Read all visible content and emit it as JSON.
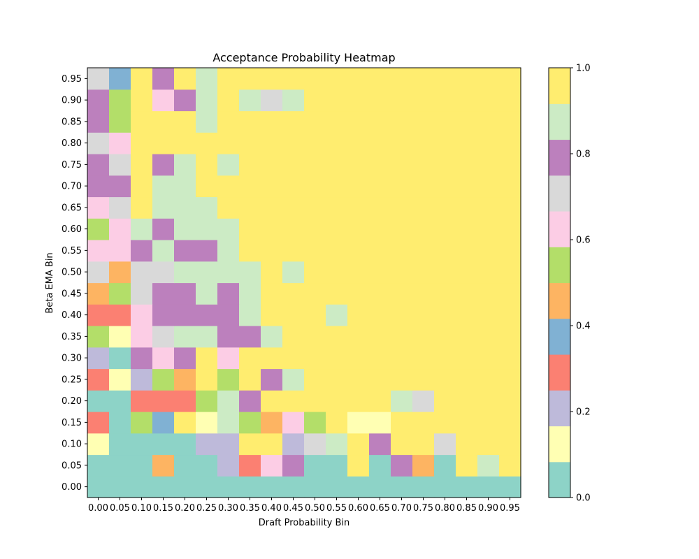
{
  "chart_data": {
    "type": "heatmap",
    "title": "Acceptance Probability Heatmap",
    "xlabel": "Draft Probability Bin",
    "ylabel": "Beta EMA Bin",
    "x_categories": [
      "0.00",
      "0.05",
      "0.10",
      "0.15",
      "0.20",
      "0.25",
      "0.30",
      "0.35",
      "0.40",
      "0.45",
      "0.50",
      "0.55",
      "0.60",
      "0.65",
      "0.70",
      "0.75",
      "0.80",
      "0.85",
      "0.90",
      "0.95"
    ],
    "y_categories": [
      "0.00",
      "0.05",
      "0.10",
      "0.15",
      "0.20",
      "0.25",
      "0.30",
      "0.35",
      "0.40",
      "0.45",
      "0.50",
      "0.55",
      "0.60",
      "0.65",
      "0.70",
      "0.75",
      "0.80",
      "0.85",
      "0.90",
      "0.95"
    ],
    "colorbar": {
      "range": [
        0.0,
        1.0
      ],
      "ticks": [
        "0.0",
        "0.2",
        "0.4",
        "0.6",
        "0.8",
        "1.0"
      ],
      "colormap": "Set3",
      "colors": [
        "#8dd3c7",
        "#ffffb3",
        "#bebada",
        "#fb8072",
        "#80b1d3",
        "#fdb462",
        "#b3de69",
        "#fccde5",
        "#d9d9d9",
        "#bc80bd",
        "#ccebc5",
        "#ffed6f"
      ]
    },
    "values": [
      [
        0.0,
        0.0,
        0.0,
        0.0,
        0.0,
        0.0,
        0.0,
        0.0,
        0.0,
        0.0,
        0.0,
        0.0,
        0.0,
        0.0,
        0.0,
        0.0,
        0.0,
        0.0,
        0.0,
        0.0
      ],
      [
        0.0,
        0.0,
        0.0,
        0.46,
        0.0,
        0.0,
        0.21,
        0.29,
        0.62,
        0.79,
        0.0,
        0.0,
        1.0,
        0.0,
        0.79,
        0.46,
        0.0,
        1.0,
        0.87,
        1.0
      ],
      [
        0.12,
        0.0,
        0.0,
        0.0,
        0.0,
        0.21,
        0.21,
        1.0,
        1.0,
        0.21,
        0.71,
        0.87,
        1.0,
        0.79,
        1.0,
        1.0,
        0.71,
        1.0,
        1.0,
        1.0
      ],
      [
        0.29,
        0.0,
        0.54,
        0.37,
        1.0,
        0.12,
        0.87,
        0.54,
        0.46,
        0.62,
        0.54,
        1.0,
        0.12,
        0.12,
        1.0,
        1.0,
        1.0,
        1.0,
        1.0,
        1.0
      ],
      [
        0.0,
        0.0,
        0.29,
        0.29,
        0.29,
        0.54,
        0.87,
        0.79,
        1.0,
        1.0,
        1.0,
        1.0,
        1.0,
        1.0,
        0.87,
        0.71,
        1.0,
        1.0,
        1.0,
        1.0
      ],
      [
        0.29,
        0.12,
        0.21,
        0.54,
        0.46,
        1.0,
        0.54,
        1.0,
        0.79,
        0.87,
        1.0,
        1.0,
        1.0,
        1.0,
        1.0,
        1.0,
        1.0,
        1.0,
        1.0,
        1.0
      ],
      [
        0.21,
        0.0,
        0.79,
        0.62,
        0.79,
        1.0,
        0.62,
        1.0,
        1.0,
        1.0,
        1.0,
        1.0,
        1.0,
        1.0,
        1.0,
        1.0,
        1.0,
        1.0,
        1.0,
        1.0
      ],
      [
        0.54,
        0.12,
        0.62,
        0.71,
        0.87,
        0.87,
        0.79,
        0.79,
        0.87,
        1.0,
        1.0,
        1.0,
        1.0,
        1.0,
        1.0,
        1.0,
        1.0,
        1.0,
        1.0,
        1.0
      ],
      [
        0.29,
        0.29,
        0.62,
        0.79,
        0.79,
        0.79,
        0.79,
        0.87,
        1.0,
        1.0,
        1.0,
        0.87,
        1.0,
        1.0,
        1.0,
        1.0,
        1.0,
        1.0,
        1.0,
        1.0
      ],
      [
        0.46,
        0.54,
        0.71,
        0.79,
        0.79,
        0.87,
        0.79,
        0.87,
        1.0,
        1.0,
        1.0,
        1.0,
        1.0,
        1.0,
        1.0,
        1.0,
        1.0,
        1.0,
        1.0,
        1.0
      ],
      [
        0.71,
        0.46,
        0.71,
        0.71,
        0.87,
        0.87,
        0.87,
        0.87,
        1.0,
        0.87,
        1.0,
        1.0,
        1.0,
        1.0,
        1.0,
        1.0,
        1.0,
        1.0,
        1.0,
        1.0
      ],
      [
        0.62,
        0.62,
        0.79,
        0.87,
        0.79,
        0.79,
        0.87,
        1.0,
        1.0,
        1.0,
        1.0,
        1.0,
        1.0,
        1.0,
        1.0,
        1.0,
        1.0,
        1.0,
        1.0,
        1.0
      ],
      [
        0.54,
        0.62,
        0.87,
        0.79,
        0.87,
        0.87,
        0.87,
        1.0,
        1.0,
        1.0,
        1.0,
        1.0,
        1.0,
        1.0,
        1.0,
        1.0,
        1.0,
        1.0,
        1.0,
        1.0
      ],
      [
        0.62,
        0.71,
        1.0,
        0.87,
        0.87,
        0.87,
        1.0,
        1.0,
        1.0,
        1.0,
        1.0,
        1.0,
        1.0,
        1.0,
        1.0,
        1.0,
        1.0,
        1.0,
        1.0,
        1.0
      ],
      [
        0.79,
        0.79,
        1.0,
        0.87,
        0.87,
        1.0,
        1.0,
        1.0,
        1.0,
        1.0,
        1.0,
        1.0,
        1.0,
        1.0,
        1.0,
        1.0,
        1.0,
        1.0,
        1.0,
        1.0
      ],
      [
        0.79,
        0.71,
        1.0,
        0.79,
        0.87,
        1.0,
        0.87,
        1.0,
        1.0,
        1.0,
        1.0,
        1.0,
        1.0,
        1.0,
        1.0,
        1.0,
        1.0,
        1.0,
        1.0,
        1.0
      ],
      [
        0.71,
        0.62,
        1.0,
        1.0,
        1.0,
        1.0,
        1.0,
        1.0,
        1.0,
        1.0,
        1.0,
        1.0,
        1.0,
        1.0,
        1.0,
        1.0,
        1.0,
        1.0,
        1.0,
        1.0
      ],
      [
        0.79,
        0.54,
        1.0,
        1.0,
        1.0,
        0.87,
        1.0,
        1.0,
        1.0,
        1.0,
        1.0,
        1.0,
        1.0,
        1.0,
        1.0,
        1.0,
        1.0,
        1.0,
        1.0,
        1.0
      ],
      [
        0.79,
        0.54,
        1.0,
        0.62,
        0.79,
        0.87,
        1.0,
        0.87,
        0.71,
        0.87,
        1.0,
        1.0,
        1.0,
        1.0,
        1.0,
        1.0,
        1.0,
        1.0,
        1.0,
        1.0
      ],
      [
        0.71,
        0.37,
        1.0,
        0.79,
        1.0,
        0.87,
        1.0,
        1.0,
        1.0,
        1.0,
        1.0,
        1.0,
        1.0,
        1.0,
        1.0,
        1.0,
        1.0,
        1.0,
        1.0,
        1.0
      ]
    ]
  }
}
